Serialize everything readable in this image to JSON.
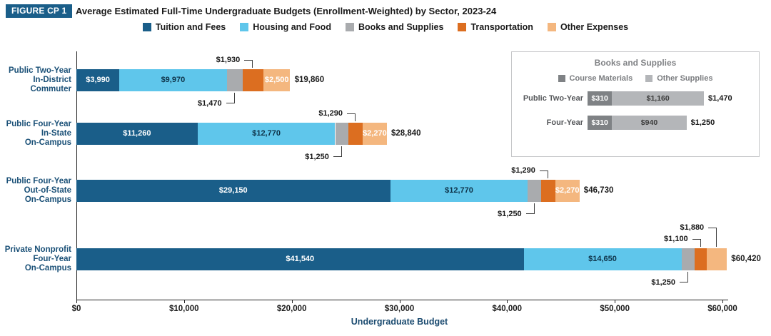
{
  "figure": {
    "badge": "FIGURE CP 1"
  },
  "chart_data": {
    "type": "stacked-bar-horizontal",
    "title": "Average Estimated Full-Time Undergraduate Budgets (Enrollment-Weighted) by Sector, 2023-24",
    "xlabel": "Undergraduate Budget",
    "legend_position": "top",
    "grid": false,
    "x_axis": {
      "min": 0,
      "max": 60000,
      "tick_values": [
        0,
        10000,
        20000,
        30000,
        40000,
        50000,
        60000
      ],
      "tick_labels": [
        "$0",
        "$10,000",
        "$20,000",
        "$30,000",
        "$40,000",
        "$50,000",
        "$60,000"
      ]
    },
    "legend": [
      {
        "label": "Tuition and Fees",
        "color": "#1A5E89"
      },
      {
        "label": "Housing and Food",
        "color": "#5FC6EB"
      },
      {
        "label": "Books and Supplies",
        "color": "#A9ABAE"
      },
      {
        "label": "Transportation",
        "color": "#DC6E20"
      },
      {
        "label": "Other Expenses",
        "color": "#F4B77F"
      }
    ],
    "rows": [
      {
        "category": [
          "Public Two-Year",
          "In-District",
          "Commuter"
        ],
        "values": [
          3990,
          9970,
          1470,
          1930,
          2500
        ],
        "labels": [
          "$3,990",
          "$9,970",
          "$1,470",
          "$1,930",
          "$2,500"
        ],
        "total": 19860,
        "total_label": "$19,860",
        "inside": [
          0,
          1,
          4
        ],
        "callouts": [
          {
            "seg": 3,
            "side": "above"
          },
          {
            "seg": 2,
            "side": "below"
          }
        ]
      },
      {
        "category": [
          "Public Four-Year",
          "In-State",
          "On-Campus"
        ],
        "values": [
          11260,
          12770,
          1250,
          1290,
          2270
        ],
        "labels": [
          "$11,260",
          "$12,770",
          "$1,250",
          "$1,290",
          "$2,270"
        ],
        "total": 28840,
        "total_label": "$28,840",
        "inside": [
          0,
          1,
          4
        ],
        "callouts": [
          {
            "seg": 3,
            "side": "above"
          },
          {
            "seg": 2,
            "side": "below"
          }
        ]
      },
      {
        "category": [
          "Public Four-Year",
          "Out-of-State",
          "On-Campus"
        ],
        "values": [
          29150,
          12770,
          1250,
          1290,
          2270
        ],
        "labels": [
          "$29,150",
          "$12,770",
          "$1,250",
          "$1,290",
          "$2,270"
        ],
        "total": 46730,
        "total_label": "$46,730",
        "inside": [
          0,
          1,
          4
        ],
        "callouts": [
          {
            "seg": 3,
            "side": "above"
          },
          {
            "seg": 2,
            "side": "below"
          }
        ]
      },
      {
        "category": [
          "Private Nonprofit",
          "Four-Year",
          "On-Campus"
        ],
        "values": [
          41540,
          14650,
          1250,
          1100,
          1880
        ],
        "labels": [
          "$41,540",
          "$14,650",
          "$1,250",
          "$1,100",
          "$1,880"
        ],
        "total": 60420,
        "total_label": "$60,420",
        "inside": [
          0,
          1
        ],
        "callouts": [
          {
            "seg": 4,
            "side": "above",
            "level": 2
          },
          {
            "seg": 3,
            "side": "above",
            "level": 1
          },
          {
            "seg": 2,
            "side": "below"
          }
        ]
      }
    ],
    "inset": {
      "title": "Books and Supplies",
      "legend": [
        {
          "label": "Course Materials",
          "color": "#7F8285"
        },
        {
          "label": "Other Supplies",
          "color": "#B4B6B9"
        }
      ],
      "rows": [
        {
          "category": "Public Two-Year",
          "values": [
            310,
            1160
          ],
          "labels": [
            "$310",
            "$1,160"
          ],
          "total": 1470,
          "total_label": "$1,470"
        },
        {
          "category": "Four-Year",
          "values": [
            310,
            940
          ],
          "labels": [
            "$310",
            "$940"
          ],
          "total": 1250,
          "total_label": "$1,250"
        }
      ]
    }
  }
}
